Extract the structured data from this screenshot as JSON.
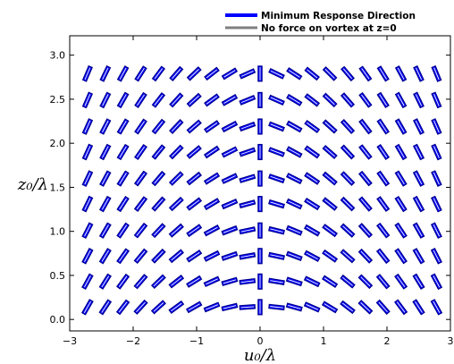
{
  "chart_data": {
    "type": "quiver",
    "xlabel": "u₀/λ",
    "ylabel": "z₀/λ",
    "xlim": [
      -3,
      3
    ],
    "ylim": [
      -0.13,
      3.22
    ],
    "x_ticks": [
      -3,
      -2,
      -1,
      0,
      1,
      2,
      3
    ],
    "x_tick_labels": [
      "−3",
      "−2",
      "−1",
      "0",
      "1",
      "2",
      "3"
    ],
    "y_ticks": [
      0.0,
      0.5,
      1.0,
      1.5,
      2.0,
      2.5,
      3.0
    ],
    "y_tick_labels": [
      "0.0",
      "0.5",
      "1.0",
      "1.5",
      "2.0",
      "2.5",
      "3.0"
    ],
    "grid": false,
    "legend_position": "top-right",
    "legend": [
      {
        "label": "Minimum Response Direction",
        "color": "#0000ff"
      },
      {
        "label": "No force on vortex at z=0",
        "color": "#808080"
      }
    ],
    "u_values": [
      -2.72,
      -2.44,
      -2.16,
      -1.88,
      -1.6,
      -1.32,
      -1.04,
      -0.76,
      -0.48,
      -0.2,
      0.0,
      0.26,
      0.54,
      0.82,
      1.1,
      1.38,
      1.66,
      1.94,
      2.22,
      2.5,
      2.78
    ],
    "z_values": [
      0.14,
      0.43,
      0.72,
      1.01,
      1.31,
      1.6,
      1.9,
      2.19,
      2.49,
      2.79
    ],
    "angle_deg_at_u_minus_0.2": [
      4,
      7,
      10,
      12,
      15,
      17,
      19,
      20,
      22,
      24
    ],
    "note": "",
    "bar_color": "#00008b",
    "bar_fill": "#0000ff",
    "center_line_color": "#ffffff"
  }
}
